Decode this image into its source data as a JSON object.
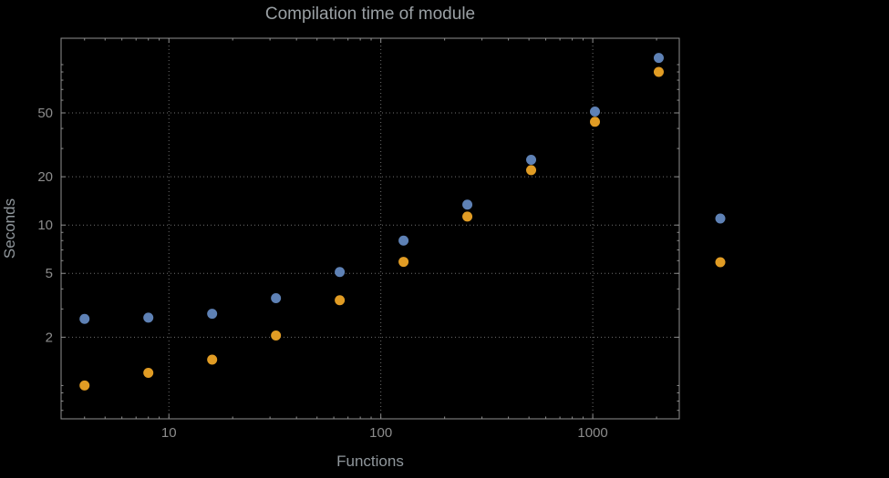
{
  "chart_data": {
    "type": "scatter",
    "title": "Compilation time of module",
    "xlabel": "Functions",
    "ylabel": "Seconds",
    "xscale": "log",
    "yscale": "log",
    "xlim": [
      3.1,
      2560
    ],
    "ylim": [
      0.62,
      146
    ],
    "grid": true,
    "x": [
      4,
      8,
      16,
      32,
      64,
      128,
      256,
      512,
      1024,
      2048
    ],
    "series": [
      {
        "name": "blue",
        "color": "#5e81b5",
        "values": [
          2.6,
          2.65,
          2.8,
          3.5,
          5.1,
          8.0,
          13.4,
          25.5,
          51,
          110
        ]
      },
      {
        "name": "orange",
        "color": "#e19c24",
        "values": [
          1.0,
          1.2,
          1.45,
          2.05,
          3.4,
          5.9,
          11.3,
          22,
          44,
          90
        ]
      }
    ],
    "x_ticks": [
      10,
      100,
      1000
    ],
    "x_tick_labels": [
      "10",
      "100",
      "1000"
    ],
    "y_ticks": [
      2,
      5,
      10,
      20,
      50
    ],
    "y_tick_labels": [
      "2",
      "5",
      "10",
      "20",
      "50"
    ],
    "legend_markers": [
      {
        "series": "blue",
        "color": "#5e81b5"
      },
      {
        "series": "orange",
        "color": "#e19c24"
      }
    ],
    "colors": {
      "background": "#000000",
      "frame": "#8f8f8f",
      "grid": "#6f6f6f",
      "tick_label": "#8c8c8c",
      "title": "#9aa0a4",
      "axis_label": "#90979c",
      "series_blue": "#5e81b5",
      "series_orange": "#e19c24"
    }
  }
}
